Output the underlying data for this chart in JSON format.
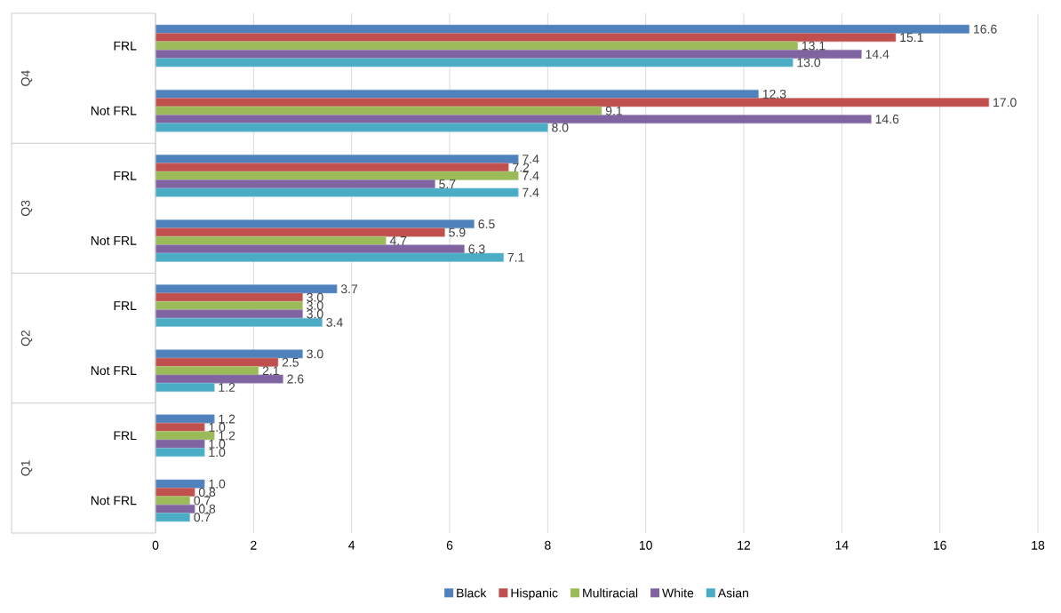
{
  "chart_data": {
    "type": "bar",
    "orientation": "horizontal",
    "categories": [
      "FRL",
      "Not FRL",
      "FRL",
      "Not FRL",
      "FRL",
      "Not FRL",
      "FRL",
      "Not FRL"
    ],
    "annotations": [
      "Q4",
      "Q3",
      "Q2",
      "Q1"
    ],
    "series": [
      {
        "name": "Black",
        "color": "#4f81bd",
        "values": [
          16.6,
          12.3,
          7.4,
          6.5,
          3.7,
          3.0,
          1.2,
          1.0
        ],
        "value_labels": [
          "16.6",
          "12.3",
          "7.4",
          "6.5",
          "3.7",
          "3.0",
          "1.2",
          "1.0"
        ]
      },
      {
        "name": "Hispanic",
        "color": "#c0504d",
        "values": [
          15.1,
          17.0,
          7.2,
          5.9,
          3.0,
          2.5,
          1.0,
          0.8
        ],
        "value_labels": [
          "15.1",
          "17.0",
          "7.2",
          "5.9",
          "3.0",
          "2.5",
          "1.0",
          "0.8"
        ]
      },
      {
        "name": "Multiracial",
        "color": "#9bbb59",
        "values": [
          13.1,
          9.1,
          7.4,
          4.7,
          3.0,
          2.1,
          1.2,
          0.7
        ],
        "value_labels": [
          "13.1",
          "9.1",
          "7.4",
          "4.7",
          "3.0",
          "2.1",
          "1.2",
          "0.7"
        ]
      },
      {
        "name": "White",
        "color": "#8064a2",
        "values": [
          14.4,
          14.6,
          5.7,
          6.3,
          3.0,
          2.6,
          1.0,
          0.8
        ],
        "value_labels": [
          "14.4",
          "14.6",
          "5.7",
          "6.3",
          "3.0",
          "2.6",
          "1.0",
          "0.8"
        ]
      },
      {
        "name": "Asian",
        "color": "#4bacc6",
        "values": [
          13.0,
          8.0,
          7.4,
          7.1,
          3.4,
          1.2,
          1.0,
          0.7
        ],
        "value_labels": [
          "13.0",
          "8.0",
          "7.4",
          "7.1",
          "3.4",
          "1.2",
          "1.0",
          "0.7"
        ]
      }
    ],
    "xlim": [
      0,
      18
    ],
    "xticks": [
      0,
      2,
      4,
      6,
      8,
      10,
      12,
      14,
      16,
      18
    ],
    "grid": "x",
    "legend": "bottom"
  }
}
